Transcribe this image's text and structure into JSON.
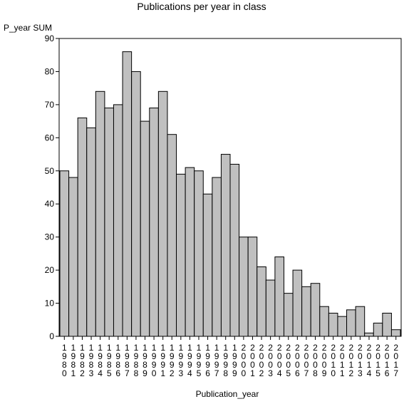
{
  "chart_data": {
    "type": "bar",
    "title": "Publications per year in class",
    "xlabel": "Publication_year",
    "ylabel": "P_year SUM",
    "ylim": [
      0,
      90
    ],
    "yticks": [
      0,
      10,
      20,
      30,
      40,
      50,
      60,
      70,
      80,
      90
    ],
    "grid": false,
    "legend": "none",
    "bar_color": "#c0c0c0",
    "categories": [
      "1980",
      "1981",
      "1982",
      "1983",
      "1984",
      "1985",
      "1986",
      "1987",
      "1988",
      "1989",
      "1990",
      "1991",
      "1992",
      "1993",
      "1994",
      "1995",
      "1996",
      "1997",
      "1998",
      "1999",
      "2000",
      "2001",
      "2002",
      "2003",
      "2004",
      "2005",
      "2006",
      "2007",
      "2008",
      "2009",
      "2010",
      "2011",
      "2012",
      "2013",
      "2014",
      "2015",
      "2016",
      "2017"
    ],
    "values": [
      50,
      48,
      66,
      63,
      74,
      69,
      70,
      86,
      80,
      65,
      69,
      74,
      61,
      49,
      51,
      50,
      43,
      48,
      55,
      52,
      30,
      30,
      21,
      17,
      24,
      13,
      20,
      15,
      16,
      9,
      7,
      6,
      8,
      9,
      1,
      4,
      7,
      2
    ]
  }
}
